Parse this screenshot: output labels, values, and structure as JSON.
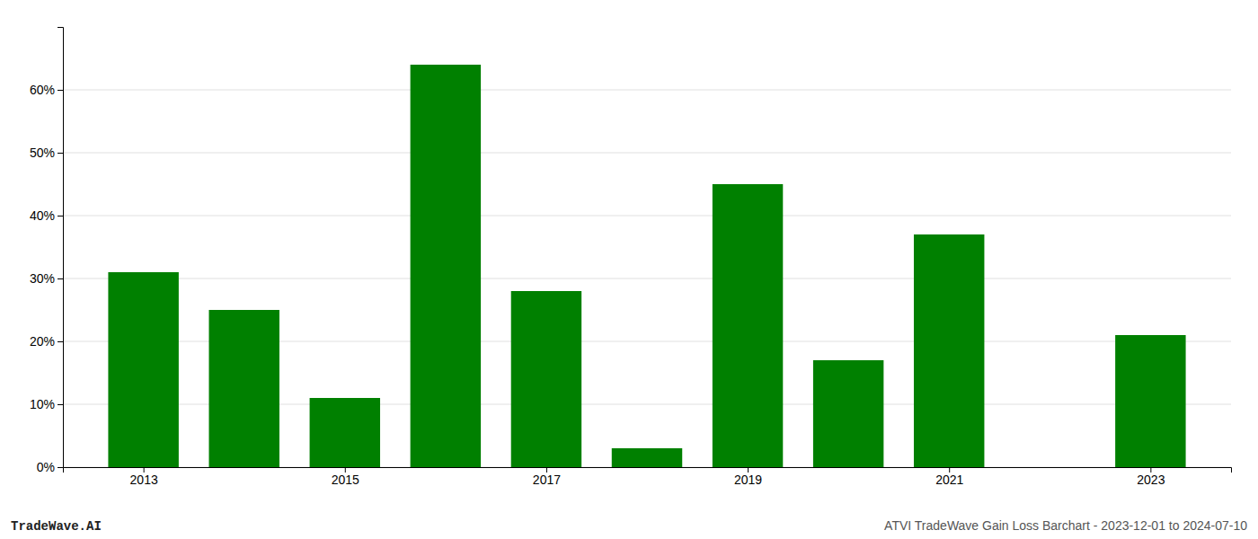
{
  "chart_data": {
    "type": "bar",
    "x": [
      2013,
      2014,
      2015,
      2016,
      2017,
      2018,
      2019,
      2020,
      2021,
      2022,
      2023
    ],
    "values": [
      0.31,
      0.25,
      0.11,
      0.64,
      0.28,
      0.03,
      0.45,
      0.17,
      0.37,
      0.0,
      0.21
    ],
    "color": "#008000",
    "xlim": [
      2012.2,
      2023.8
    ],
    "xticks": [
      2013,
      2015,
      2017,
      2019,
      2021,
      2023
    ],
    "ylim": [
      0,
      0.7
    ],
    "yticks": [
      {
        "value": 0.0,
        "label": "0%"
      },
      {
        "value": 0.1,
        "label": "10%"
      },
      {
        "value": 0.2,
        "label": "20%"
      },
      {
        "value": 0.3,
        "label": "30%"
      },
      {
        "value": 0.4,
        "label": "40%"
      },
      {
        "value": 0.5,
        "label": "50%"
      },
      {
        "value": 0.6,
        "label": "60%"
      }
    ],
    "grid": true,
    "annotations": [
      "TradeWave.AI",
      "ATVI TradeWave Gain Loss Barchart - 2023-12-01 to 2024-07-10"
    ]
  }
}
